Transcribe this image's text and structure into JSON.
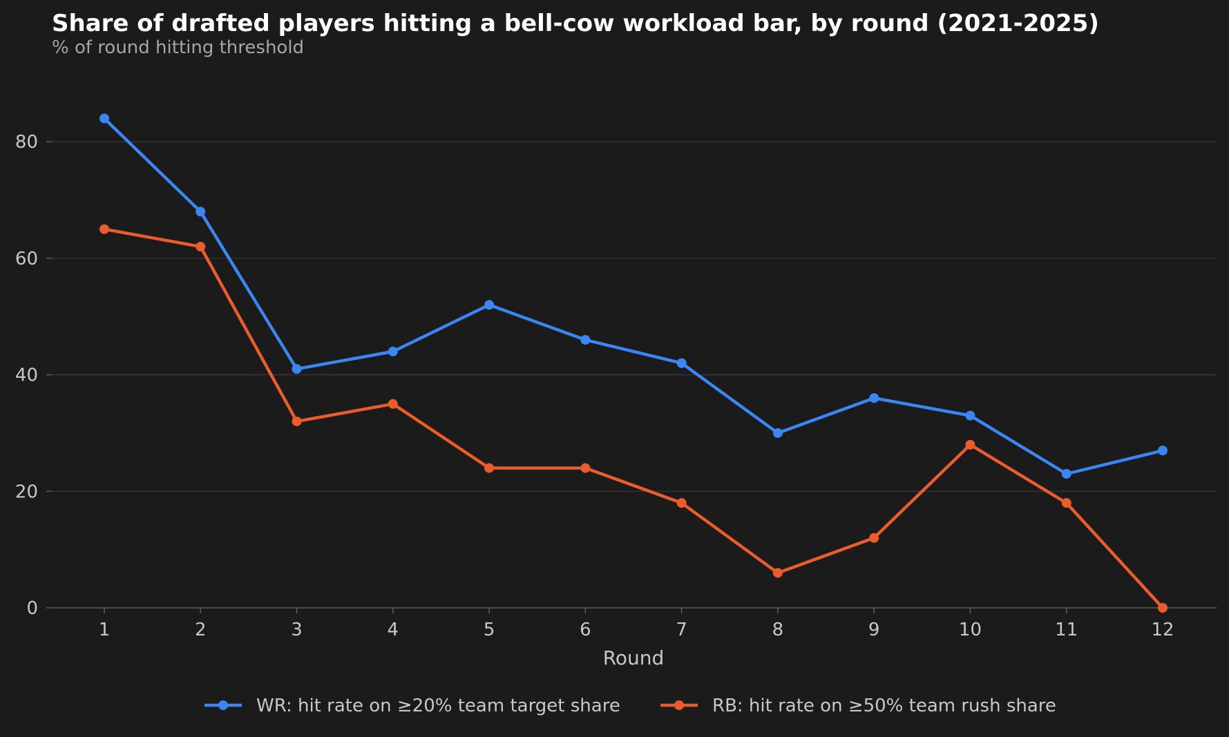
{
  "chart_data": {
    "type": "line",
    "title": "Share of drafted players hitting a bell-cow workload bar, by round (2021-2025)",
    "subtitle": "% of round hitting threshold",
    "xlabel": "Round",
    "ylabel": "",
    "x": [
      1,
      2,
      3,
      4,
      5,
      6,
      7,
      8,
      9,
      10,
      11,
      12
    ],
    "xticks": [
      "1",
      "2",
      "3",
      "4",
      "5",
      "6",
      "7",
      "8",
      "9",
      "10",
      "11",
      "12"
    ],
    "ylim": [
      0,
      92
    ],
    "yticks": [
      0,
      20,
      40,
      60,
      80
    ],
    "grid": "horizontal",
    "legend_position": "bottom-center",
    "series": [
      {
        "name": "WR: hit rate on ≥20% team target share",
        "color": "#3b86f2",
        "values": [
          84,
          68,
          41,
          44,
          52,
          46,
          42,
          30,
          36,
          33,
          23,
          27
        ]
      },
      {
        "name": "RB: hit rate on ≥50% team rush share",
        "color": "#ea5c2b",
        "values": [
          65,
          62,
          32,
          35,
          24,
          24,
          18,
          6,
          12,
          28,
          18,
          0
        ]
      }
    ],
    "colors": {
      "background": "#1b1b1b",
      "grid": "#3a3a3a",
      "axis": "#5e5e5e",
      "tick_text": "#c8c8c8",
      "title": "#ffffff",
      "subtitle": "#a6a6a6"
    }
  }
}
